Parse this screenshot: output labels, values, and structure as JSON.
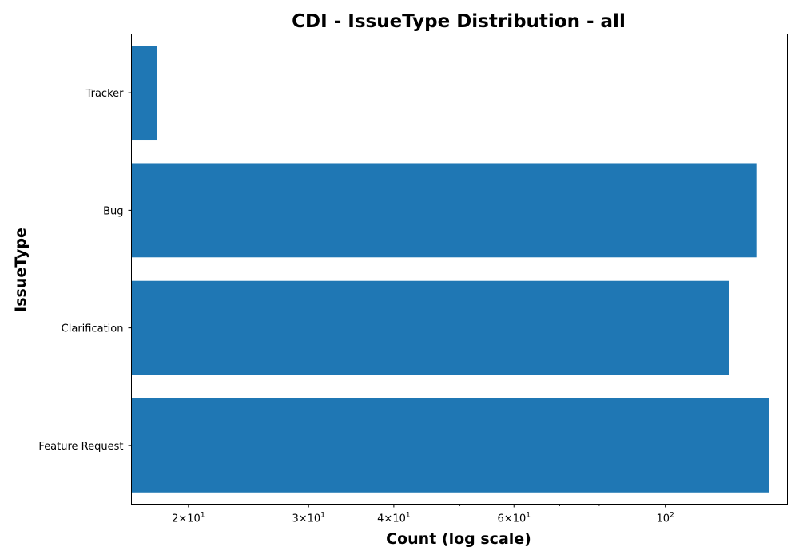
{
  "chart_data": {
    "type": "bar",
    "orientation": "horizontal",
    "title": "CDI - IssueType Distribution - all",
    "xlabel": "Count (log scale)",
    "ylabel": "IssueType",
    "x_scale": "log",
    "xlim": [
      16.5,
      151
    ],
    "categories": [
      "Feature Request",
      "Clarification",
      "Bug",
      "Tracker"
    ],
    "values": [
      142,
      124,
      136,
      18
    ],
    "x_ticks": [
      {
        "value": 20,
        "mantissa": "2",
        "base": "10",
        "exp": "1"
      },
      {
        "value": 30,
        "mantissa": "3",
        "base": "10",
        "exp": "1"
      },
      {
        "value": 40,
        "mantissa": "4",
        "base": "10",
        "exp": "1"
      },
      {
        "value": 60,
        "mantissa": "6",
        "base": "10",
        "exp": "1"
      },
      {
        "value": 100,
        "mantissa": "",
        "base": "10",
        "exp": "2"
      }
    ],
    "x_minor_ticks": [
      50,
      70,
      80,
      90
    ],
    "bar_color": "#1f77b4",
    "grid": false,
    "legend": "none"
  }
}
